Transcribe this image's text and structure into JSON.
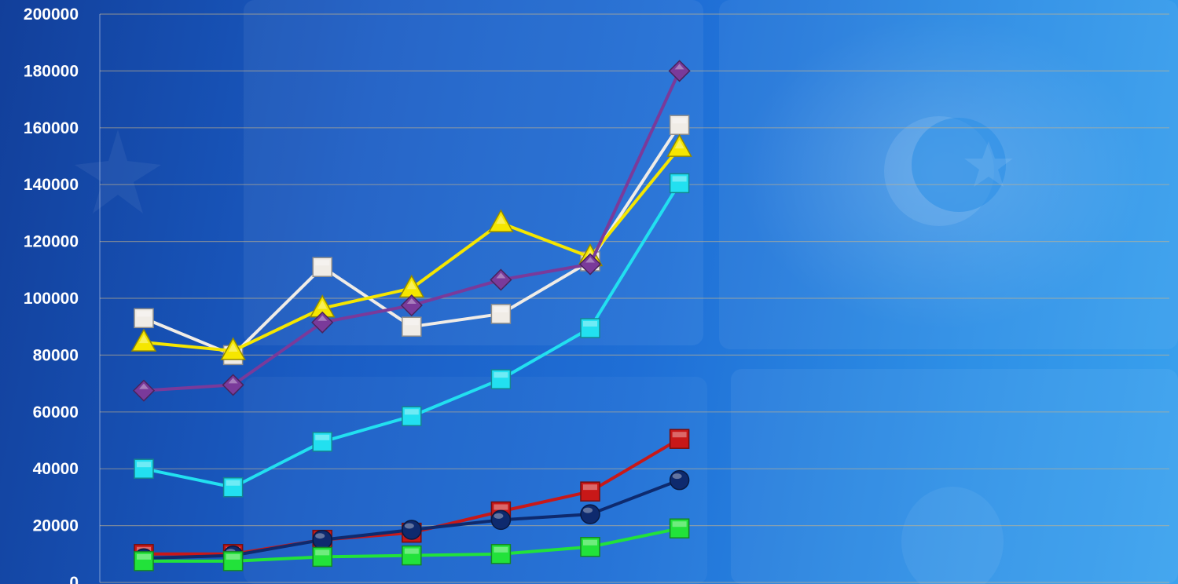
{
  "chart_data": {
    "type": "line",
    "title": "",
    "xlabel": "",
    "ylabel": "",
    "ylim": [
      0,
      200000
    ],
    "yticks": [
      0,
      20000,
      40000,
      60000,
      80000,
      100000,
      120000,
      140000,
      160000,
      180000,
      200000
    ],
    "ytick_labels": [
      "0",
      "20000",
      "40000",
      "60000",
      "80000",
      "100000",
      "120000",
      "140000",
      "160000",
      "180000",
      "200000"
    ],
    "x": [
      1,
      2,
      3,
      4,
      5,
      6,
      7
    ],
    "grid": true,
    "legend": "none",
    "series": [
      {
        "values": [
          93000,
          80000,
          111000,
          90000,
          94500,
          113000,
          161000
        ],
        "color": "#f0ece6",
        "marker": "square"
      },
      {
        "values": [
          84500,
          81500,
          96500,
          103500,
          126500,
          114500,
          153000
        ],
        "color": "#f5e600",
        "marker": "triangle"
      },
      {
        "values": [
          67500,
          69500,
          91500,
          97500,
          106500,
          112000,
          180000
        ],
        "color": "#7a3a9a",
        "marker": "diamond"
      },
      {
        "values": [
          40000,
          33500,
          49500,
          58500,
          71500,
          89500,
          140500
        ],
        "color": "#22e0f0",
        "marker": "square"
      },
      {
        "values": [
          10000,
          10000,
          15000,
          17500,
          25000,
          32000,
          50500
        ],
        "color": "#c81818",
        "marker": "square"
      },
      {
        "values": [
          8500,
          9500,
          15000,
          18500,
          22000,
          24000,
          36000
        ],
        "color": "#0e2a6e",
        "marker": "circle"
      },
      {
        "values": [
          7500,
          7500,
          9000,
          9500,
          10000,
          12500,
          19000
        ],
        "color": "#22e23a",
        "marker": "square"
      }
    ]
  }
}
